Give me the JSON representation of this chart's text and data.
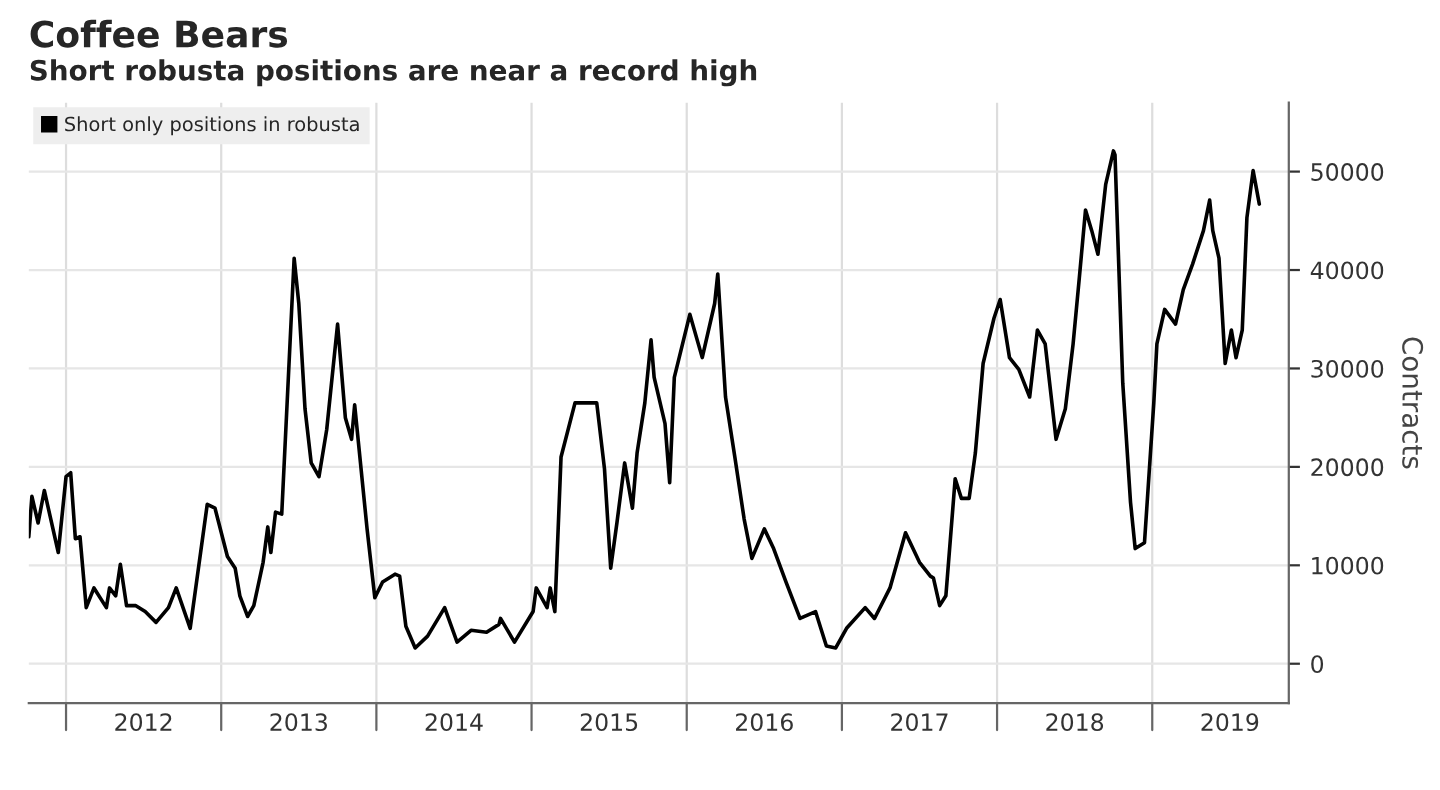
{
  "chart_data": {
    "type": "line",
    "title": "Coffee Bears",
    "subtitle": "Short robusta positions are near a record high",
    "ylabel": "Contracts",
    "legend": "top left",
    "grid": true,
    "line_style": "solid",
    "marker": "none",
    "xlim": [
      2011.76,
      2019.88
    ],
    "ylim": [
      -4000,
      57000
    ],
    "xticks": [
      {
        "value": 2012,
        "label": null
      },
      {
        "value": 2012.5,
        "label": "2012"
      },
      {
        "value": 2013,
        "label": null
      },
      {
        "value": 2013.5,
        "label": "2013"
      },
      {
        "value": 2014,
        "label": null
      },
      {
        "value": 2014.5,
        "label": "2014"
      },
      {
        "value": 2015,
        "label": null
      },
      {
        "value": 2015.5,
        "label": "2015"
      },
      {
        "value": 2016,
        "label": null
      },
      {
        "value": 2016.5,
        "label": "2016"
      },
      {
        "value": 2017,
        "label": null
      },
      {
        "value": 2017.5,
        "label": "2017"
      },
      {
        "value": 2018,
        "label": null
      },
      {
        "value": 2018.5,
        "label": "2018"
      },
      {
        "value": 2019,
        "label": null
      },
      {
        "value": 2019.5,
        "label": "2019"
      }
    ],
    "yticks": [
      0,
      10000,
      20000,
      30000,
      40000,
      50000
    ],
    "series": [
      {
        "name": "Short only positions in robusta",
        "color": "#000000",
        "x": [
          2011.76,
          2011.78,
          2011.82,
          2011.86,
          2011.95,
          2012.0,
          2012.03,
          2012.06,
          2012.09,
          2012.13,
          2012.18,
          2012.26,
          2012.28,
          2012.32,
          2012.35,
          2012.39,
          2012.45,
          2012.51,
          2012.58,
          2012.66,
          2012.71,
          2012.8,
          2012.91,
          2012.96,
          2013.04,
          2013.09,
          2013.12,
          2013.17,
          2013.21,
          2013.27,
          2013.3,
          2013.32,
          2013.35,
          2013.39,
          2013.47,
          2013.5,
          2013.54,
          2013.58,
          2013.63,
          2013.68,
          2013.75,
          2013.8,
          2013.84,
          2013.86,
          2013.94,
          2013.99,
          2014.04,
          2014.12,
          2014.15,
          2014.19,
          2014.25,
          2014.33,
          2014.44,
          2014.52,
          2014.61,
          2014.71,
          2014.79,
          2014.8,
          2014.89,
          2015.01,
          2015.03,
          2015.1,
          2015.12,
          2015.15,
          2015.19,
          2015.28,
          2015.35,
          2015.42,
          2015.47,
          2015.51,
          2015.55,
          2015.6,
          2015.65,
          2015.68,
          2015.73,
          2015.77,
          2015.79,
          2015.86,
          2015.89,
          2015.92,
          2016.02,
          2016.1,
          2016.18,
          2016.2,
          2016.25,
          2016.31,
          2016.37,
          2016.42,
          2016.5,
          2016.56,
          2016.64,
          2016.73,
          2016.83,
          2016.9,
          2016.96,
          2017.03,
          2017.15,
          2017.21,
          2017.31,
          2017.41,
          2017.5,
          2017.57,
          2017.59,
          2017.63,
          2017.67,
          2017.73,
          2017.77,
          2017.82,
          2017.86,
          2017.91,
          2017.98,
          2018.02,
          2018.08,
          2018.14,
          2018.21,
          2018.26,
          2018.31,
          2018.38,
          2018.44,
          2018.49,
          2018.53,
          2018.57,
          2018.61,
          2018.65,
          2018.7,
          2018.75,
          2018.76,
          2018.81,
          2018.86,
          2018.89,
          2018.95,
          2019.01,
          2019.03,
          2019.08,
          2019.15,
          2019.2,
          2019.26,
          2019.33,
          2019.37,
          2019.39,
          2019.43,
          2019.47,
          2019.51,
          2019.54,
          2019.58,
          2019.61,
          2019.65,
          2019.69
        ],
        "values": [
          12900,
          17000,
          14300,
          17600,
          11300,
          19000,
          19400,
          12700,
          12900,
          5700,
          7700,
          5700,
          7700,
          6900,
          10100,
          5900,
          5900,
          5300,
          4200,
          5700,
          7700,
          3600,
          16200,
          15800,
          10900,
          9700,
          6900,
          4800,
          5900,
          10300,
          13900,
          11300,
          15400,
          15200,
          41200,
          36600,
          25900,
          20400,
          19000,
          23800,
          34500,
          25000,
          22800,
          26300,
          13700,
          6700,
          8300,
          9100,
          8900,
          3800,
          1600,
          2800,
          5700,
          2200,
          3400,
          3200,
          4000,
          4600,
          2200,
          5300,
          7700,
          5700,
          7700,
          5300,
          21000,
          26500,
          26500,
          26500,
          19800,
          9700,
          14300,
          20400,
          15800,
          21400,
          26500,
          32900,
          29100,
          24400,
          18400,
          29100,
          35500,
          31100,
          36600,
          39600,
          27100,
          21000,
          14700,
          10700,
          13700,
          11700,
          8300,
          4600,
          5300,
          1800,
          1600,
          3600,
          5700,
          4600,
          7700,
          13300,
          10300,
          8900,
          8700,
          5900,
          6900,
          18800,
          16800,
          16800,
          21400,
          30500,
          35100,
          37000,
          31100,
          29900,
          27100,
          33900,
          32500,
          22800,
          25900,
          32500,
          39200,
          46100,
          44000,
          41600,
          48700,
          52100,
          51700,
          28500,
          16400,
          11700,
          12300,
          26500,
          32500,
          36000,
          34500,
          38000,
          40600,
          44000,
          47100,
          44000,
          41200,
          30500,
          33900,
          31100,
          33900,
          45300,
          50100,
          46700
        ]
      }
    ]
  }
}
